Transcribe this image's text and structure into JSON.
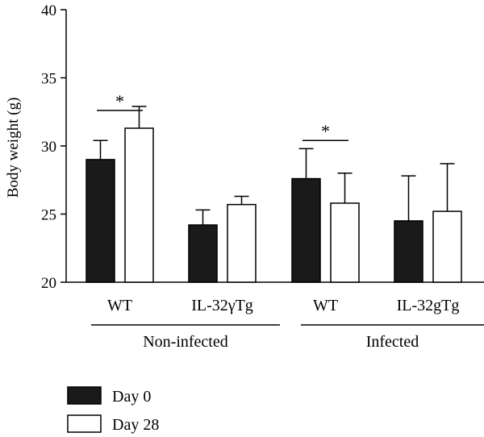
{
  "chart_data": {
    "type": "bar",
    "ylabel": "Body weight (g)",
    "ylim": [
      20,
      40
    ],
    "yticks": [
      20,
      25,
      30,
      35,
      40
    ],
    "grid": false,
    "legend_position": "bottom-left",
    "categories": [
      "WT",
      "IL-32γTg",
      "WT",
      "IL-32gTg"
    ],
    "groups": [
      {
        "label": "Non-infected",
        "categories": [
          0,
          1
        ]
      },
      {
        "label": "Infected",
        "categories": [
          2,
          3
        ]
      }
    ],
    "series": [
      {
        "name": "Day 0",
        "color": "#1a1a1a",
        "values": [
          29.0,
          24.2,
          27.6,
          24.5
        ],
        "errors": [
          1.4,
          1.1,
          2.2,
          3.3
        ]
      },
      {
        "name": "Day 28",
        "color": "#ffffff",
        "values": [
          31.3,
          25.7,
          25.8,
          25.2
        ],
        "errors": [
          1.6,
          0.6,
          2.2,
          3.5
        ]
      }
    ],
    "annotations": [
      {
        "text": "*",
        "category": 0
      },
      {
        "text": "*",
        "category": 2
      }
    ]
  }
}
